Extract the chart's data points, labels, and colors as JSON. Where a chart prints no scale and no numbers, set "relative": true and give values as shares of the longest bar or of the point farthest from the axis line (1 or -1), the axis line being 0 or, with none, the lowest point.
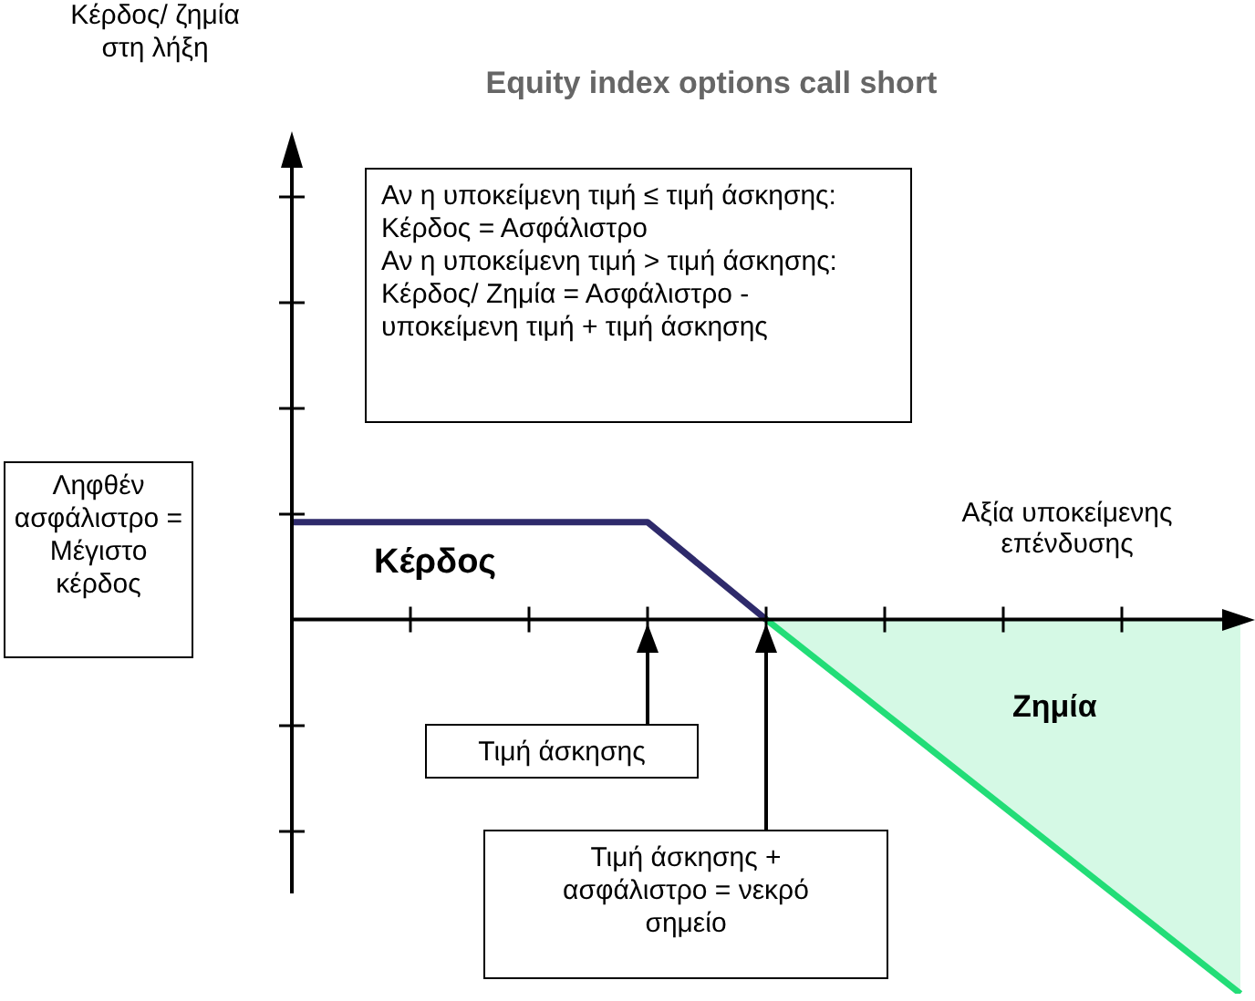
{
  "chart_data": {
    "type": "line",
    "relative": true,
    "title": "Equity index options call short",
    "xlabel": "Αξία υποκείμενης επένδυσης",
    "categories": [
      null,
      null,
      null,
      null,
      null,
      null,
      null,
      null,
      null
    ],
    "series": [
      {
        "color": "#2e2a6b",
        "values": [
          0.26,
          0.26,
          0.26,
          0.26,
          0,
          null,
          null,
          null,
          null
        ]
      },
      {
        "type": "area",
        "color": "#22dd77",
        "values": [
          null,
          null,
          null,
          null,
          0,
          -0.25,
          -0.5,
          -0.75,
          -1
        ]
      }
    ],
    "annotations": [
      "Αν η υποκείμενη τιμή ≤ τιμή άσκησης:\nΚέρδος = Ασφάλιστρο\nΑν η υποκείμενη τιμή > τιμή άσκησης:\nΚέρδος/ Ζημία = Ασφάλιστρο -\nυποκείμενη τιμή + τιμή άσκησης",
      "Ληφθέν ασφάλιστρο = Μέγιστο κέρδος",
      "Κέρδος",
      "Ζημία",
      "Τιμή άσκησης",
      "Τιμή άσκησης + ασφάλιστρο = νεκρό σημείο",
      "Κέρδος/ ζημία στη λήξη"
    ]
  }
}
